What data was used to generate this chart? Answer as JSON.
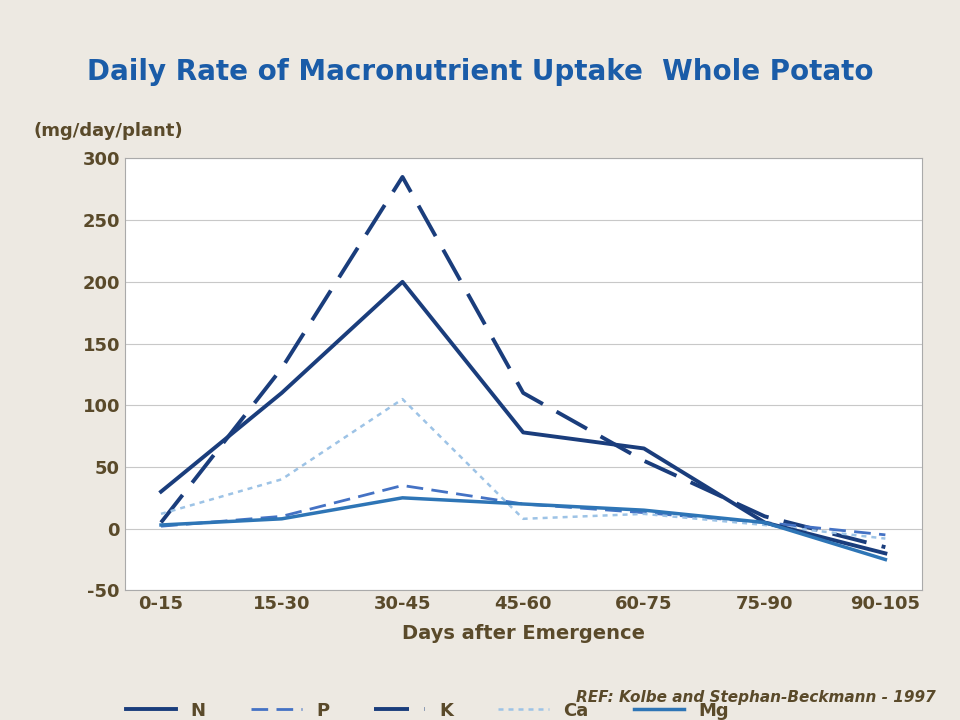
{
  "title": "Daily Rate of Macronutrient Uptake  Whole Potato",
  "ylabel": "(mg/day/plant)",
  "xlabel": "Days after Emergence",
  "reference": "REF: Kolbe and Stephan-Beckmann - 1997",
  "x_labels": [
    "0-15",
    "15-30",
    "30-45",
    "45-60",
    "60-75",
    "75-90",
    "90-105"
  ],
  "ylim": [
    -50,
    300
  ],
  "yticks": [
    -50,
    0,
    50,
    100,
    150,
    200,
    250,
    300
  ],
  "series": {
    "N": {
      "values": [
        30,
        110,
        200,
        78,
        65,
        5,
        -20
      ],
      "color": "#1a3d7c",
      "linestyle": "solid",
      "linewidth": 2.8
    },
    "P": {
      "values": [
        2,
        10,
        35,
        20,
        13,
        5,
        -5
      ],
      "color": "#4472c4",
      "linestyle": "dashed",
      "linewidth": 2.0
    },
    "K": {
      "values": [
        5,
        130,
        285,
        110,
        55,
        10,
        -15
      ],
      "color": "#1a3d7c",
      "linestyle": "dashed",
      "linewidth": 2.8
    },
    "Ca": {
      "values": [
        12,
        40,
        105,
        8,
        12,
        3,
        -8
      ],
      "color": "#9dc3e6",
      "linestyle": "dotted",
      "linewidth": 1.8
    },
    "Mg": {
      "values": [
        3,
        8,
        25,
        20,
        15,
        5,
        -25
      ],
      "color": "#2e75b6",
      "linestyle": "solid",
      "linewidth": 2.5
    }
  },
  "background_color": "#ede9e2",
  "plot_bg_color": "#ffffff",
  "title_color": "#1a5ca8",
  "axis_label_color": "#5a4a2a",
  "tick_color": "#5a4a2a",
  "grid_color": "#c8c8c8",
  "ref_color": "#5a4a2a"
}
